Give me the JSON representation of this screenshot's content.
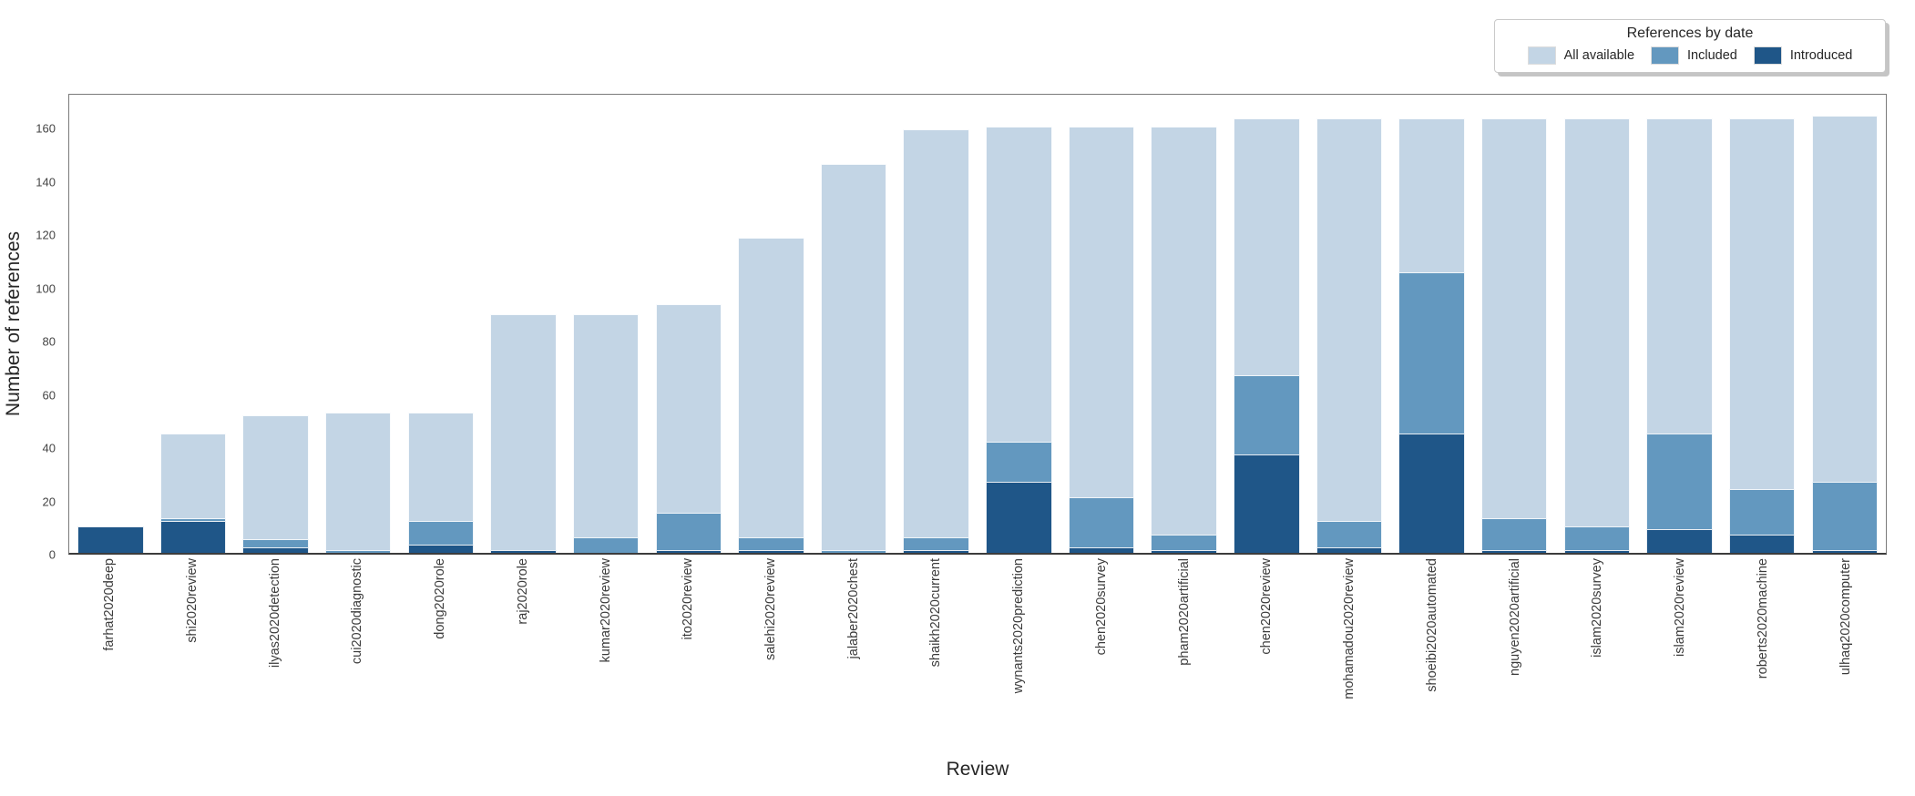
{
  "chart_data": {
    "type": "bar",
    "title": "",
    "xlabel": "Review",
    "ylabel": "Number of references",
    "ylim": [
      0,
      173
    ],
    "yticks": [
      0,
      20,
      40,
      60,
      80,
      100,
      120,
      140,
      160
    ],
    "grid": false,
    "legend_position": "upper right outside-top",
    "legend_title": "References by date",
    "bar_style": "overlaid (All available behind, Included middle, Introduced front)",
    "categories": [
      "farhat2020deep",
      "shi2020review",
      "ilyas2020detection",
      "cui2020diagnostic",
      "dong2020role",
      "raj2020role",
      "kumar2020review",
      "ito2020review",
      "salehi2020review",
      "jalaber2020chest",
      "shaikh2020current",
      "wynants2020prediction",
      "chen2020survey",
      "pham2020artificial",
      "chen2020review",
      "mohamadou2020review",
      "shoeibi2020automated",
      "nguyen2020artificial",
      "islam2020survey",
      "islam2020review",
      "roberts2020machine",
      "ulhaq2020computer"
    ],
    "series": [
      {
        "name": "All available",
        "color": "#c3d5e5",
        "values": [
          10,
          45,
          52,
          53,
          53,
          90,
          90,
          94,
          119,
          147,
          160,
          161,
          161,
          161,
          164,
          164,
          164,
          164,
          164,
          164,
          164,
          165
        ]
      },
      {
        "name": "Included",
        "color": "#6398bf",
        "values": [
          10,
          13,
          5,
          1,
          12,
          1,
          6,
          15,
          6,
          1,
          6,
          42,
          21,
          7,
          67,
          12,
          106,
          13,
          10,
          45,
          24,
          27
        ]
      },
      {
        "name": "Introduced",
        "color": "#1f5688",
        "values": [
          10,
          12,
          2,
          0,
          3,
          1,
          0,
          1,
          1,
          0,
          1,
          27,
          2,
          1,
          37,
          2,
          45,
          1,
          1,
          9,
          7,
          1
        ]
      }
    ]
  },
  "legend": {
    "title": "References by date",
    "items": [
      {
        "label": "All available"
      },
      {
        "label": "Included"
      },
      {
        "label": "Introduced"
      }
    ]
  },
  "axes": {
    "y_title": "Number of references",
    "x_title": "Review"
  }
}
